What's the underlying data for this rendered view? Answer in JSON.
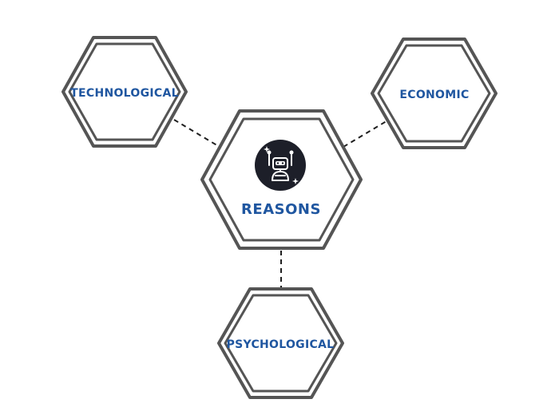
{
  "diagram": {
    "center": {
      "label": "REASONS",
      "icon": "robot-icon"
    },
    "nodes": [
      {
        "id": "technological",
        "label": "TECHNOLOGICAL"
      },
      {
        "id": "economic",
        "label": "ECONOMIC"
      },
      {
        "id": "psychological",
        "label": "PSYCHOLOGICAL"
      }
    ],
    "colors": {
      "label_text": "#1f56a0",
      "hex_stroke": "#555555",
      "icon_background": "#1d1f29",
      "connector": "#1f1f1f"
    }
  }
}
